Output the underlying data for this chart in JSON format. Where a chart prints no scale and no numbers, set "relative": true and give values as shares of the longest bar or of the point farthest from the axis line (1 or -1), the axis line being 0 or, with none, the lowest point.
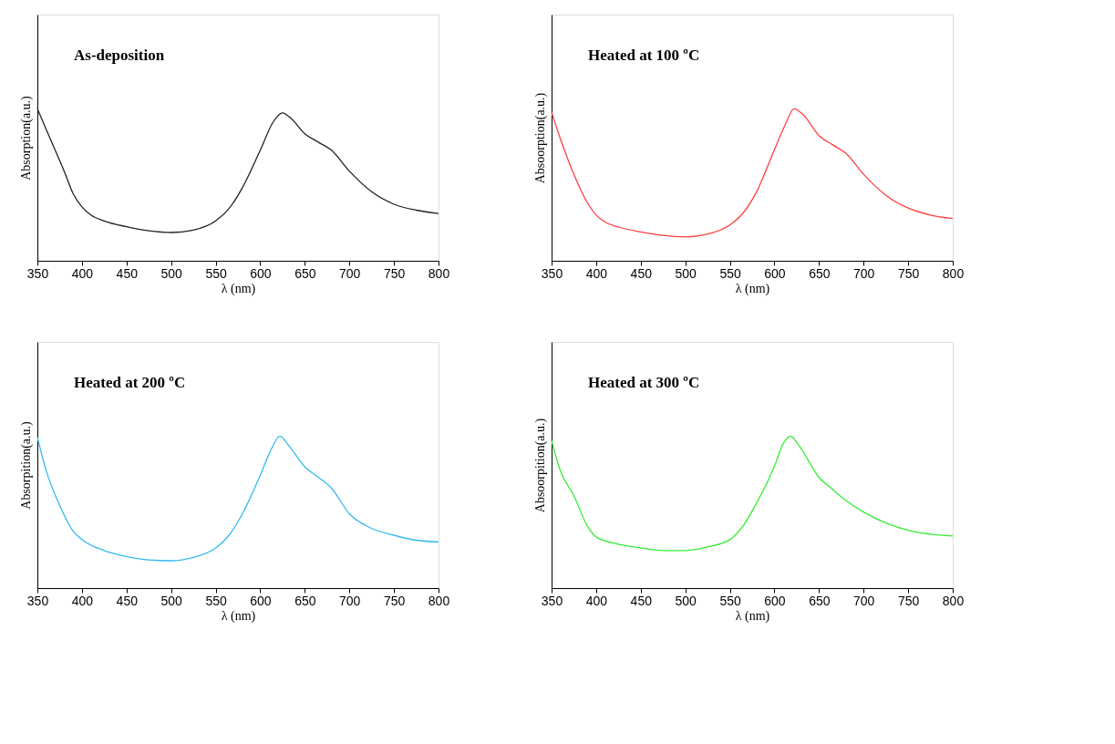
{
  "chart_data": [
    {
      "type": "line",
      "relative": true,
      "annotations": [
        "As-deposition"
      ],
      "xlabel": "λ  (nm)",
      "ylabel": "Absorption(a.u.)",
      "xlim": [
        350,
        800
      ],
      "xticks": [
        350,
        400,
        450,
        500,
        550,
        600,
        650,
        700,
        750,
        800
      ],
      "tick_labels": "x",
      "x": [
        350,
        360,
        370,
        380,
        390,
        400,
        410,
        425,
        450,
        475,
        500,
        525,
        550,
        565,
        580,
        600,
        615,
        625,
        635,
        650,
        665,
        680,
        700,
        725,
        750,
        775,
        800
      ],
      "series": [
        {
          "color": "#222222",
          "values": [
            1.0,
            0.863,
            0.727,
            0.59,
            0.443,
            0.355,
            0.301,
            0.262,
            0.224,
            0.197,
            0.186,
            0.202,
            0.262,
            0.344,
            0.481,
            0.727,
            0.918,
            0.973,
            0.934,
            0.836,
            0.781,
            0.727,
            0.59,
            0.454,
            0.372,
            0.333,
            0.311
          ]
        }
      ]
    },
    {
      "type": "line",
      "relative": true,
      "annotations": [
        "Heated at 100  ºC"
      ],
      "xlabel": "λ  (nm)",
      "ylabel": "Absoorption(a.u.)",
      "xlim": [
        350,
        800
      ],
      "xticks": [
        350,
        400,
        450,
        500,
        550,
        600,
        650,
        700,
        750,
        800
      ],
      "tick_labels": "x",
      "x": [
        350,
        360,
        375,
        390,
        400,
        410,
        425,
        450,
        475,
        500,
        525,
        550,
        565,
        580,
        600,
        612,
        622,
        632,
        650,
        665,
        680,
        700,
        725,
        750,
        775,
        800
      ],
      "series": [
        {
          "color": "#ff4040",
          "values": [
            0.977,
            0.801,
            0.569,
            0.384,
            0.301,
            0.255,
            0.222,
            0.19,
            0.167,
            0.157,
            0.176,
            0.236,
            0.315,
            0.454,
            0.731,
            0.894,
            1.0,
            0.963,
            0.824,
            0.764,
            0.708,
            0.569,
            0.431,
            0.347,
            0.301,
            0.278
          ]
        }
      ]
    },
    {
      "type": "line",
      "relative": true,
      "annotations": [
        "Heated at 200  ºC"
      ],
      "xlabel": "λ  (nm)",
      "ylabel": "Absorpition(a.u.)",
      "xlim": [
        350,
        800
      ],
      "xticks": [
        350,
        400,
        450,
        500,
        550,
        600,
        650,
        700,
        750,
        800
      ],
      "tick_labels": "x",
      "x": [
        350,
        360,
        375,
        390,
        400,
        425,
        450,
        475,
        500,
        525,
        550,
        565,
        580,
        600,
        612,
        622,
        632,
        650,
        665,
        680,
        700,
        725,
        750,
        775,
        800
      ],
      "series": [
        {
          "color": "#33bbee",
          "values": [
            0.994,
            0.77,
            0.545,
            0.376,
            0.32,
            0.247,
            0.208,
            0.185,
            0.18,
            0.202,
            0.264,
            0.348,
            0.489,
            0.742,
            0.91,
            1.0,
            0.938,
            0.798,
            0.73,
            0.657,
            0.489,
            0.393,
            0.348,
            0.315,
            0.303
          ]
        }
      ]
    },
    {
      "type": "line",
      "relative": true,
      "annotations": [
        "Heated at 300  ºC"
      ],
      "xlabel": "λ  (nm)",
      "ylabel": "Absoorpition(a.u.)",
      "xlim": [
        350,
        800
      ],
      "xticks": [
        350,
        400,
        450,
        500,
        550,
        600,
        650,
        700,
        750,
        800
      ],
      "tick_labels": "x",
      "x": [
        350,
        360,
        375,
        390,
        400,
        425,
        450,
        475,
        500,
        525,
        550,
        565,
        580,
        600,
        610,
        618,
        628,
        650,
        665,
        680,
        700,
        725,
        750,
        775,
        800
      ],
      "series": [
        {
          "color": "#33ee33",
          "values": [
            0.97,
            0.771,
            0.608,
            0.41,
            0.337,
            0.289,
            0.265,
            0.247,
            0.247,
            0.271,
            0.319,
            0.41,
            0.56,
            0.801,
            0.952,
            1.0,
            0.934,
            0.729,
            0.651,
            0.578,
            0.5,
            0.428,
            0.38,
            0.355,
            0.343
          ]
        }
      ]
    }
  ]
}
